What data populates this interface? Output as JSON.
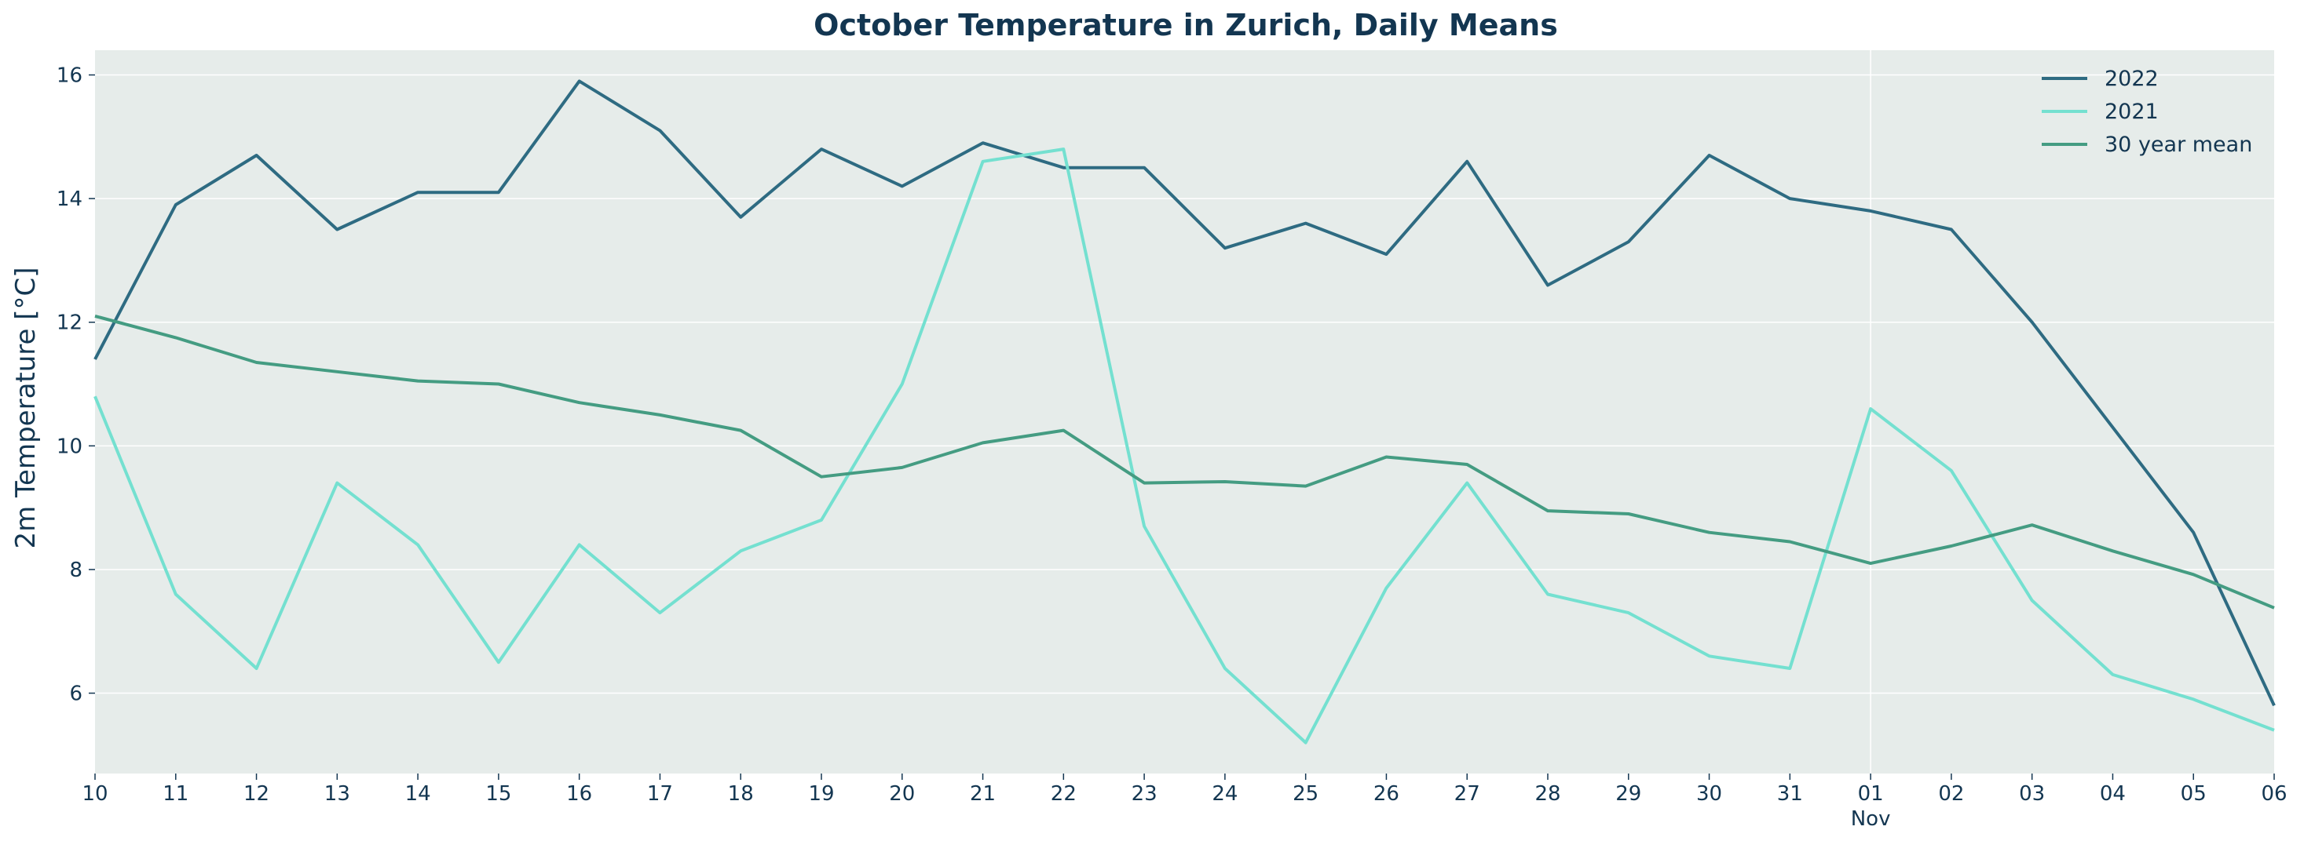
{
  "chart_data": {
    "type": "line",
    "title": "October Temperature in Zurich, Daily Means",
    "xlabel": "",
    "ylabel": "2m Temperature [°C]",
    "x": [
      "10",
      "11",
      "12",
      "13",
      "14",
      "15",
      "16",
      "17",
      "18",
      "19",
      "20",
      "21",
      "22",
      "23",
      "24",
      "25",
      "26",
      "27",
      "28",
      "29",
      "30",
      "31",
      "01",
      "02",
      "03",
      "04",
      "05",
      "06"
    ],
    "x_sublabels": [
      {
        "index": 22,
        "text": "Nov"
      }
    ],
    "ylim": [
      4.7,
      16.4
    ],
    "yticks": [
      6,
      8,
      10,
      12,
      14,
      16
    ],
    "grid": true,
    "legend_position": "top-right",
    "series": [
      {
        "name": "2022",
        "color": "#2e6b82",
        "values": [
          11.4,
          13.9,
          14.7,
          13.5,
          14.1,
          14.1,
          15.9,
          15.1,
          13.7,
          14.8,
          14.2,
          14.9,
          14.5,
          14.5,
          13.2,
          13.6,
          13.1,
          14.6,
          12.6,
          13.3,
          14.7,
          14.0,
          13.8,
          13.5,
          12.0,
          10.3,
          8.6,
          5.8
        ]
      },
      {
        "name": "2021",
        "color": "#74e0d0",
        "values": [
          10.8,
          7.6,
          6.4,
          9.4,
          8.4,
          6.5,
          8.4,
          7.3,
          8.3,
          8.8,
          11.0,
          14.6,
          14.8,
          8.7,
          6.4,
          5.2,
          7.7,
          9.4,
          7.6,
          7.3,
          6.6,
          6.4,
          10.6,
          9.6,
          7.5,
          6.3,
          5.9,
          5.4
        ]
      },
      {
        "name": "30 year mean",
        "color": "#449c82",
        "values": [
          12.1,
          11.75,
          11.35,
          11.2,
          11.05,
          11.0,
          10.7,
          10.5,
          10.25,
          9.5,
          9.65,
          10.05,
          10.25,
          9.4,
          9.42,
          9.35,
          9.82,
          9.7,
          8.95,
          8.9,
          8.6,
          8.45,
          8.1,
          8.38,
          8.72,
          8.3,
          7.92,
          7.38
        ]
      }
    ]
  },
  "style": {
    "plot_bg": "#e6ecea",
    "grid_color": "#ffffff",
    "text_color": "#133651"
  }
}
